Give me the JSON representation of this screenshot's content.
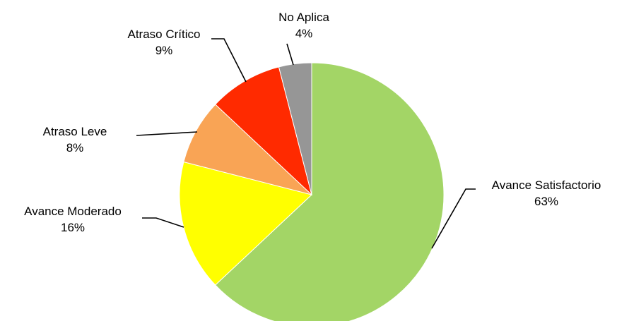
{
  "chart_data": {
    "type": "pie",
    "title": "",
    "slices": [
      {
        "label": "Avance Satisfactorio",
        "value": 63,
        "display": "63%",
        "color": "#A3D566"
      },
      {
        "label": "Avance Moderado",
        "value": 16,
        "display": "16%",
        "color": "#FFFF00"
      },
      {
        "label": "Atraso Leve",
        "value": 8,
        "display": "8%",
        "color": "#F9A455"
      },
      {
        "label": "Atraso Crítico",
        "value": 9,
        "display": "9%",
        "color": "#FF2A00"
      },
      {
        "label": "No Aplica",
        "value": 4,
        "display": "4%",
        "color": "#969696"
      }
    ],
    "start_angle_deg": 0,
    "direction": "clockwise",
    "legend": "none",
    "data_labels": "outside with leader lines"
  }
}
